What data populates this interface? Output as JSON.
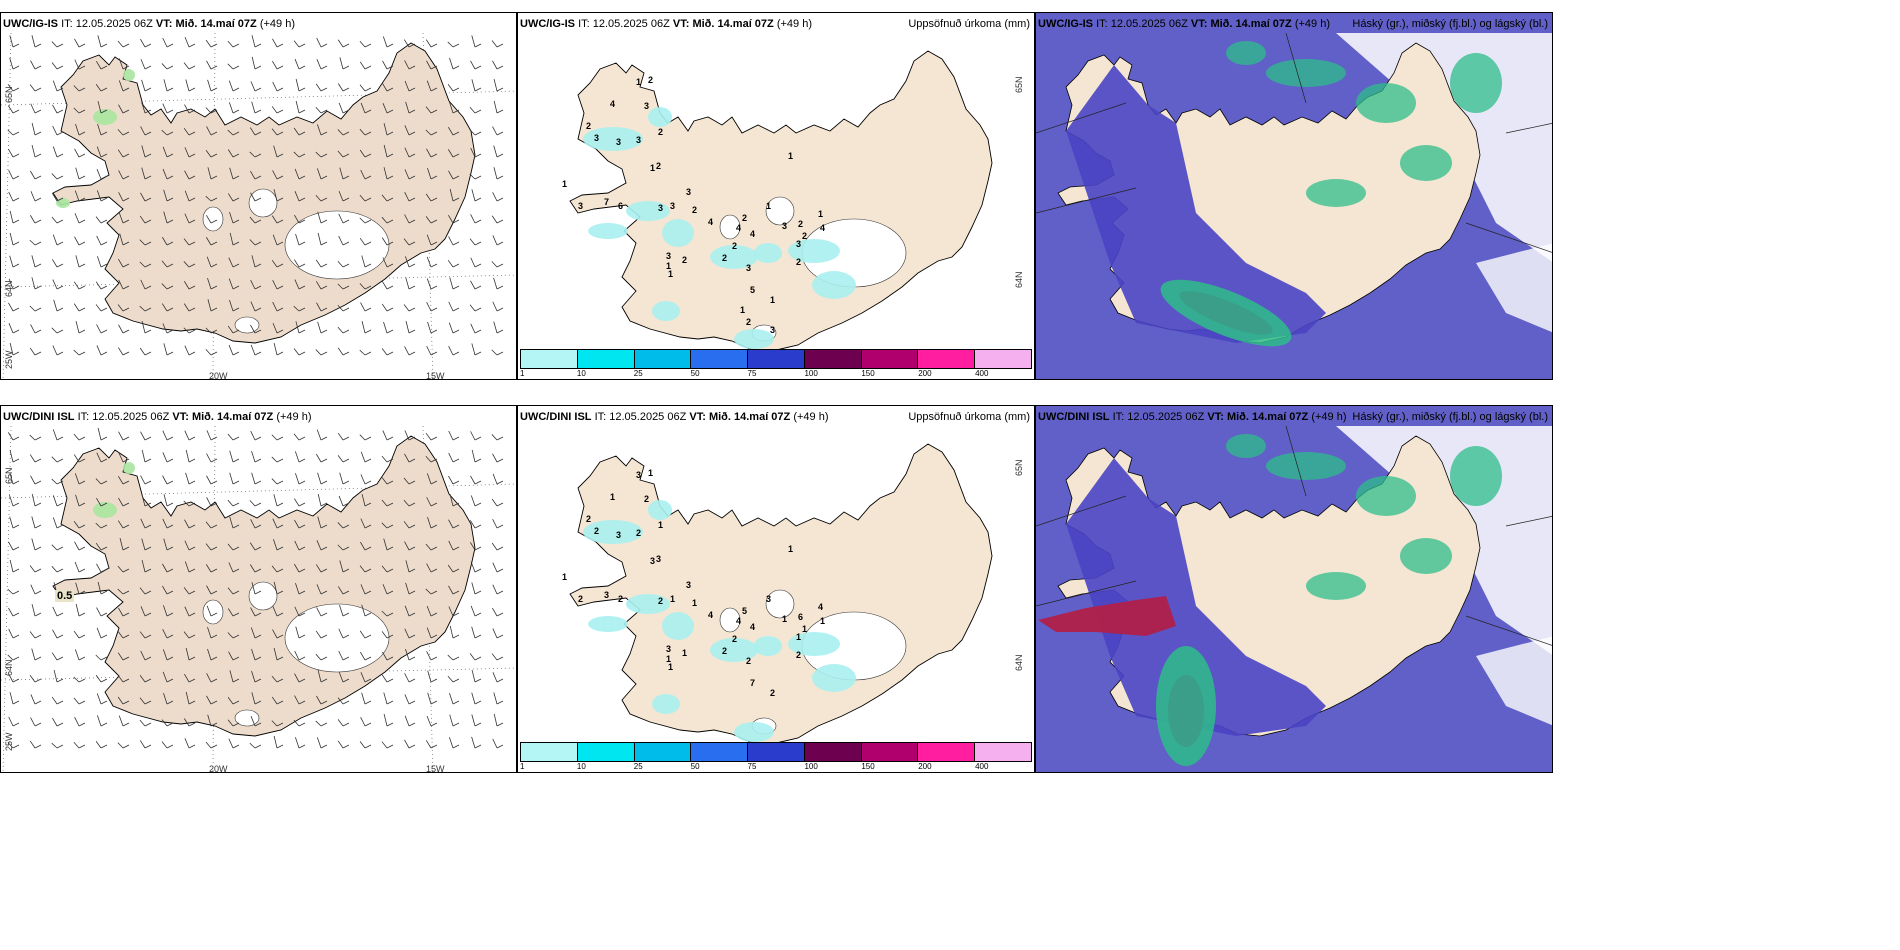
{
  "panels": [
    {
      "id": "wind-top",
      "model": "UWC/IG-IS",
      "it_label": "IT:",
      "it_value": "12.05.2025 06Z",
      "vt_label": "VT:",
      "vt_value": "Mið. 14.maí 07Z",
      "lead": "(+49 h)",
      "right_title": "",
      "grid_labels": {
        "lat_top": "65N",
        "lat_mid": "64N",
        "lon_left": "25W",
        "lon_a": "20W",
        "lon_b": "15W"
      }
    },
    {
      "id": "precip-top",
      "model": "UWC/IG-IS",
      "it_label": "IT:",
      "it_value": "12.05.2025 06Z",
      "vt_label": "VT:",
      "vt_value": "Mið. 14.maí 07Z",
      "lead": "(+49 h)",
      "right_title": "Uppsöfnuð úrkoma (mm)",
      "grid_labels": {
        "lat_top": "65N",
        "lat_mid": "64N"
      },
      "point_values": [
        "1",
        "2",
        "3",
        "4",
        "2",
        "3",
        "3",
        "3",
        "2",
        "1",
        "2",
        "3",
        "1",
        "3",
        "3",
        "3",
        "2",
        "4",
        "4",
        "4",
        "2",
        "2",
        "2",
        "3",
        "3",
        "1",
        "2",
        "1",
        "1",
        "1",
        "3",
        "2",
        "5",
        "1",
        "3",
        "7",
        "6",
        "2",
        "1",
        "4",
        "2",
        "1",
        "2",
        "3"
      ]
    },
    {
      "id": "cloud-top",
      "model": "UWC/IG-IS",
      "it_label": "IT:",
      "it_value": "12.05.2025 06Z",
      "vt_label": "VT:",
      "vt_value": "Mið. 14.maí 07Z",
      "lead": "(+49 h)",
      "right_title": "Háský (gr.), miðský (fj.bl.) og lágský (bl.)"
    },
    {
      "id": "wind-bottom",
      "model": "UWC/DINI ISL",
      "it_label": "IT:",
      "it_value": "12.05.2025 06Z",
      "vt_label": "VT:",
      "vt_value": "Mið. 14.maí 07Z",
      "lead": "(+49 h)",
      "right_title": "",
      "point_label": "0.5",
      "grid_labels": {
        "lat_top": "65N",
        "lat_mid": "64N",
        "lon_left": "25W",
        "lon_a": "20W",
        "lon_b": "15W"
      }
    },
    {
      "id": "precip-bottom",
      "model": "UWC/DINI ISL",
      "it_label": "IT:",
      "it_value": "12.05.2025 06Z",
      "vt_label": "VT:",
      "vt_value": "Mið. 14.maí 07Z",
      "lead": "(+49 h)",
      "right_title": "Uppsöfnuð úrkoma (mm)",
      "grid_labels": {
        "lat_top": "65N",
        "lat_mid": "64N"
      },
      "point_values": [
        "3",
        "1",
        "2",
        "1",
        "2",
        "2",
        "3",
        "2",
        "1",
        "3",
        "3",
        "3",
        "1",
        "2",
        "1",
        "2",
        "1",
        "4",
        "4",
        "4",
        "5",
        "2",
        "2",
        "2",
        "3",
        "1",
        "1",
        "1",
        "3",
        "1",
        "1",
        "1",
        "7",
        "2",
        "1",
        "3",
        "2",
        "6",
        "4",
        "1",
        "2"
      ]
    },
    {
      "id": "cloud-bottom",
      "model": "UWC/DINI ISL",
      "it_label": "IT:",
      "it_value": "12.05.2025 06Z",
      "vt_label": "VT:",
      "vt_value": "Mið. 14.maí 07Z",
      "lead": "(+49 h)",
      "right_title": "Háský (gr.), miðský (fj.bl.) og lágský (bl.)"
    }
  ],
  "precip_legend": {
    "ticks": [
      "1",
      "10",
      "25",
      "50",
      "75",
      "100",
      "150",
      "200",
      "400"
    ],
    "colors": [
      "#b4f5f5",
      "#00e6f0",
      "#00bcea",
      "#2a6ef0",
      "#2a3ccc",
      "#6e0050",
      "#b0006e",
      "#ff1ea0",
      "#f5b0f0"
    ]
  },
  "colors": {
    "land": "#f5e6d3",
    "land_wind": "#eddccb",
    "sea_cloud": "#6060c8",
    "low_cloud": "#4a44c4",
    "high_cloud_green": "#2ebd8a",
    "mid_cloud": "#3c9c88",
    "precip_light": "#aaf0f0",
    "snow_white": "#ffffff",
    "red_cloud": "#b0204a"
  }
}
